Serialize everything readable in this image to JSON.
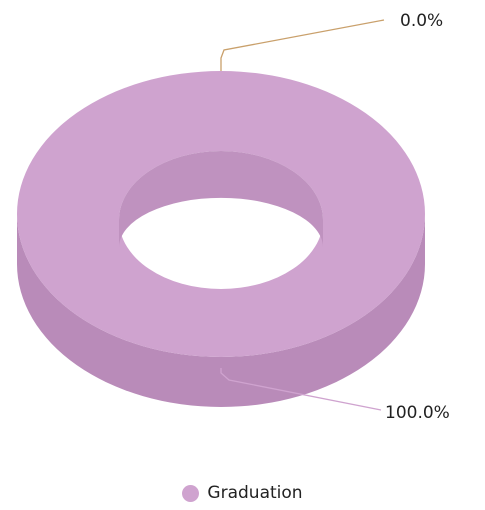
{
  "chart_data": {
    "type": "pie",
    "variant": "donut-3d",
    "categories": [
      "Graduation",
      ""
    ],
    "values": [
      100.0,
      0.0
    ],
    "data_labels": [
      "100.0%",
      "0.0%"
    ],
    "colors": {
      "top": "#cfa3cf",
      "side": "#b98bb9",
      "inner_wall": "#bf92bf",
      "leader_pink": "#cfa3cf",
      "leader_tan": "#c9a06b"
    },
    "legend": {
      "position": "bottom",
      "entries": [
        {
          "label": "Graduation",
          "color": "#cfa3cf"
        }
      ]
    }
  }
}
